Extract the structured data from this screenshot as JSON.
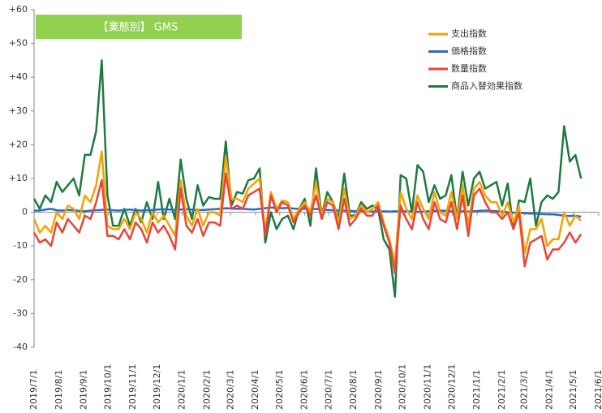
{
  "chart_data": {
    "type": "line",
    "title": "【業態別】 GMS",
    "title_background": "#92d050",
    "legend": "top-right",
    "grid": false,
    "x": [
      "2019/7/1",
      "2019/7/8",
      "2019/7/15",
      "2019/7/22",
      "2019/7/29",
      "2019/8/5",
      "2019/8/12",
      "2019/8/19",
      "2019/8/26",
      "2019/9/2",
      "2019/9/9",
      "2019/9/16",
      "2019/9/23",
      "2019/9/30",
      "2019/10/7",
      "2019/10/14",
      "2019/10/21",
      "2019/10/28",
      "2019/11/4",
      "2019/11/11",
      "2019/11/18",
      "2019/11/25",
      "2019/12/2",
      "2019/12/9",
      "2019/12/16",
      "2019/12/23",
      "2019/12/30",
      "2020/1/6",
      "2020/1/13",
      "2020/1/20",
      "2020/1/27",
      "2020/2/3",
      "2020/2/10",
      "2020/2/17",
      "2020/2/24",
      "2020/3/2",
      "2020/3/9",
      "2020/3/16",
      "2020/3/23",
      "2020/3/30",
      "2020/4/6",
      "2020/4/13",
      "2020/4/20",
      "2020/4/27",
      "2020/5/4",
      "2020/5/11",
      "2020/5/18",
      "2020/5/25",
      "2020/6/1",
      "2020/6/8",
      "2020/6/15",
      "2020/6/22",
      "2020/6/29",
      "2020/7/6",
      "2020/7/13",
      "2020/7/20",
      "2020/7/27",
      "2020/8/3",
      "2020/8/10",
      "2020/8/17",
      "2020/8/24",
      "2020/8/31",
      "2020/9/7",
      "2020/9/14",
      "2020/9/21",
      "2020/9/28",
      "2020/10/5",
      "2020/10/12",
      "2020/10/19",
      "2020/10/26",
      "2020/11/2",
      "2020/11/9",
      "2020/11/16",
      "2020/11/23",
      "2020/11/30",
      "2020/12/7",
      "2020/12/14",
      "2020/12/21",
      "2020/12/28",
      "2021/1/4",
      "2021/1/11",
      "2021/1/18",
      "2021/1/25",
      "2021/2/1",
      "2021/2/8",
      "2021/2/15",
      "2021/2/22",
      "2021/3/1",
      "2021/3/8",
      "2021/3/15",
      "2021/3/22",
      "2021/3/29",
      "2021/4/5",
      "2021/4/12",
      "2021/4/19",
      "2021/4/26",
      "2021/5/3",
      "2021/5/10"
    ],
    "series": [
      {
        "name": "支出指数",
        "color": "#f4a300",
        "values": [
          -2,
          -6,
          -4,
          -6,
          0,
          -2,
          2,
          1,
          -2,
          5,
          3,
          8,
          18,
          -4,
          -5,
          -5,
          -2,
          -5,
          0,
          -2,
          -6,
          0,
          -3,
          -1,
          -4,
          -7,
          9.5,
          -1,
          -4,
          1,
          -4,
          0,
          0,
          -1,
          16.5,
          4,
          4,
          3,
          7,
          8.5,
          10,
          -6,
          6,
          1,
          3.5,
          3,
          -2,
          1,
          3,
          0,
          9,
          -1,
          4,
          3,
          -3,
          7,
          -2,
          -1,
          2,
          0,
          1,
          3,
          -3,
          -8,
          -15,
          6,
          1,
          -2,
          5,
          1,
          -2,
          6,
          0,
          -1,
          6,
          -2,
          8,
          -4,
          7,
          9,
          5,
          3,
          3,
          -1,
          3,
          -3,
          2,
          -12,
          -5,
          -5,
          -2,
          -10,
          -8,
          -8,
          0,
          -4,
          -1,
          -2.5
        ]
      },
      {
        "name": "価格指数",
        "color": "#2e6bbf",
        "values": [
          0.5,
          0.5,
          0.8,
          1,
          0.6,
          0.5,
          0.7,
          0.6,
          0.4,
          0.3,
          0.5,
          0.6,
          0.7,
          0.8,
          0.6,
          0.5,
          0.7,
          0.8,
          0.6,
          0.5,
          0.6,
          0.7,
          0.8,
          0.9,
          0.8,
          0.7,
          0.8,
          0.9,
          0.8,
          0.6,
          0.7,
          0.8,
          0.9,
          1,
          1.2,
          1.1,
          1,
          1,
          0.9,
          0.8,
          1,
          1.2,
          1.4,
          1.3,
          1.2,
          1.3,
          1.1,
          1,
          1,
          0.9,
          1,
          0.8,
          0.7,
          0.6,
          0.5,
          0.5,
          0.4,
          0.3,
          0.3,
          0.2,
          0.2,
          0.2,
          0.3,
          0.2,
          0.3,
          0.2,
          0.3,
          0.2,
          0.1,
          0.2,
          0.3,
          0.4,
          0.5,
          0.4,
          0.3,
          0.2,
          0.3,
          0.2,
          0.3,
          0.4,
          0.5,
          0.4,
          0.3,
          0.2,
          0,
          -0.1,
          -0.2,
          -0.3,
          -0.4,
          -0.4,
          -0.5,
          -0.6,
          -0.6,
          -0.8,
          -1,
          -1.1,
          -1,
          -1.3
        ]
      },
      {
        "name": "数量指数",
        "color": "#e8453c",
        "values": [
          -6,
          -9,
          -8,
          -10,
          -3,
          -6,
          -2,
          -4,
          -6,
          -1,
          -2,
          3,
          9.5,
          -7,
          -7,
          -8,
          -5,
          -8,
          -3,
          -5,
          -9,
          -3,
          -6,
          -4,
          -7,
          -11,
          7,
          -4,
          -6,
          -2,
          -7,
          -3,
          -3,
          -4,
          11.5,
          1,
          2,
          1,
          5,
          6,
          7,
          -7,
          5,
          0,
          3,
          2,
          -3,
          0,
          2,
          -1,
          5,
          -2,
          3,
          2,
          -5,
          4,
          -4,
          -2,
          1,
          -1,
          -1,
          2,
          -4,
          -9,
          -18,
          2,
          -2,
          -5,
          3,
          -2,
          -5,
          3,
          -2,
          -3,
          3,
          -5,
          5,
          -7,
          5,
          7,
          3,
          0,
          0,
          -2,
          0,
          -5,
          0,
          -16,
          -9,
          -8,
          -7,
          -14,
          -11,
          -11,
          -9,
          -6,
          -9,
          -6.5
        ]
      },
      {
        "name": "商品入替効果指数",
        "color": "#1f7a3f",
        "values": [
          4,
          1,
          5,
          3,
          9,
          6,
          8,
          10,
          5,
          17,
          17,
          24,
          45,
          5,
          -4,
          -4,
          1,
          -4,
          1,
          -3,
          3,
          -2,
          9,
          -2,
          4,
          -2,
          15.6,
          4,
          -2,
          8,
          2,
          4.5,
          4,
          4,
          21,
          2,
          6,
          5.5,
          9.5,
          10,
          13,
          -9,
          0,
          -5,
          -2,
          -1,
          -5,
          1,
          4,
          -4,
          13,
          -1,
          6,
          3,
          -2,
          11.5,
          -1,
          -1,
          3,
          1,
          2,
          1,
          -8,
          -11,
          -25,
          11,
          10,
          0,
          14,
          12,
          3,
          8,
          4,
          5,
          11,
          -2,
          12,
          2,
          10,
          12,
          7,
          8,
          9,
          2,
          8.5,
          -5,
          3.5,
          3,
          10,
          -4,
          3,
          5,
          4,
          6,
          25.5,
          15,
          17,
          10
        ]
      }
    ],
    "xlim": [
      "2019/7/1",
      "2021/6/1"
    ],
    "xticks": [
      "2019/7/1",
      "2019/8/1",
      "2019/9/1",
      "2019/10/1",
      "2019/11/1",
      "2019/12/1",
      "2020/1/1",
      "2020/2/1",
      "2020/3/1",
      "2020/4/1",
      "2020/5/1",
      "2020/6/1",
      "2020/7/1",
      "2020/8/1",
      "2020/9/1",
      "2020/10/1",
      "2020/11/1",
      "2020/12/1",
      "2021/1/1",
      "2021/2/1",
      "2021/3/1",
      "2021/4/1",
      "2021/5/1",
      "2021/6/1"
    ],
    "ylim": [
      -40,
      60
    ],
    "yticks": [
      {
        "value": 60,
        "label": "+60"
      },
      {
        "value": 50,
        "label": "+50"
      },
      {
        "value": 40,
        "label": "+40"
      },
      {
        "value": 30,
        "label": "+30"
      },
      {
        "value": 20,
        "label": "+20"
      },
      {
        "value": 10,
        "label": "+10"
      },
      0,
      -10,
      -20,
      -30,
      -40
    ]
  }
}
